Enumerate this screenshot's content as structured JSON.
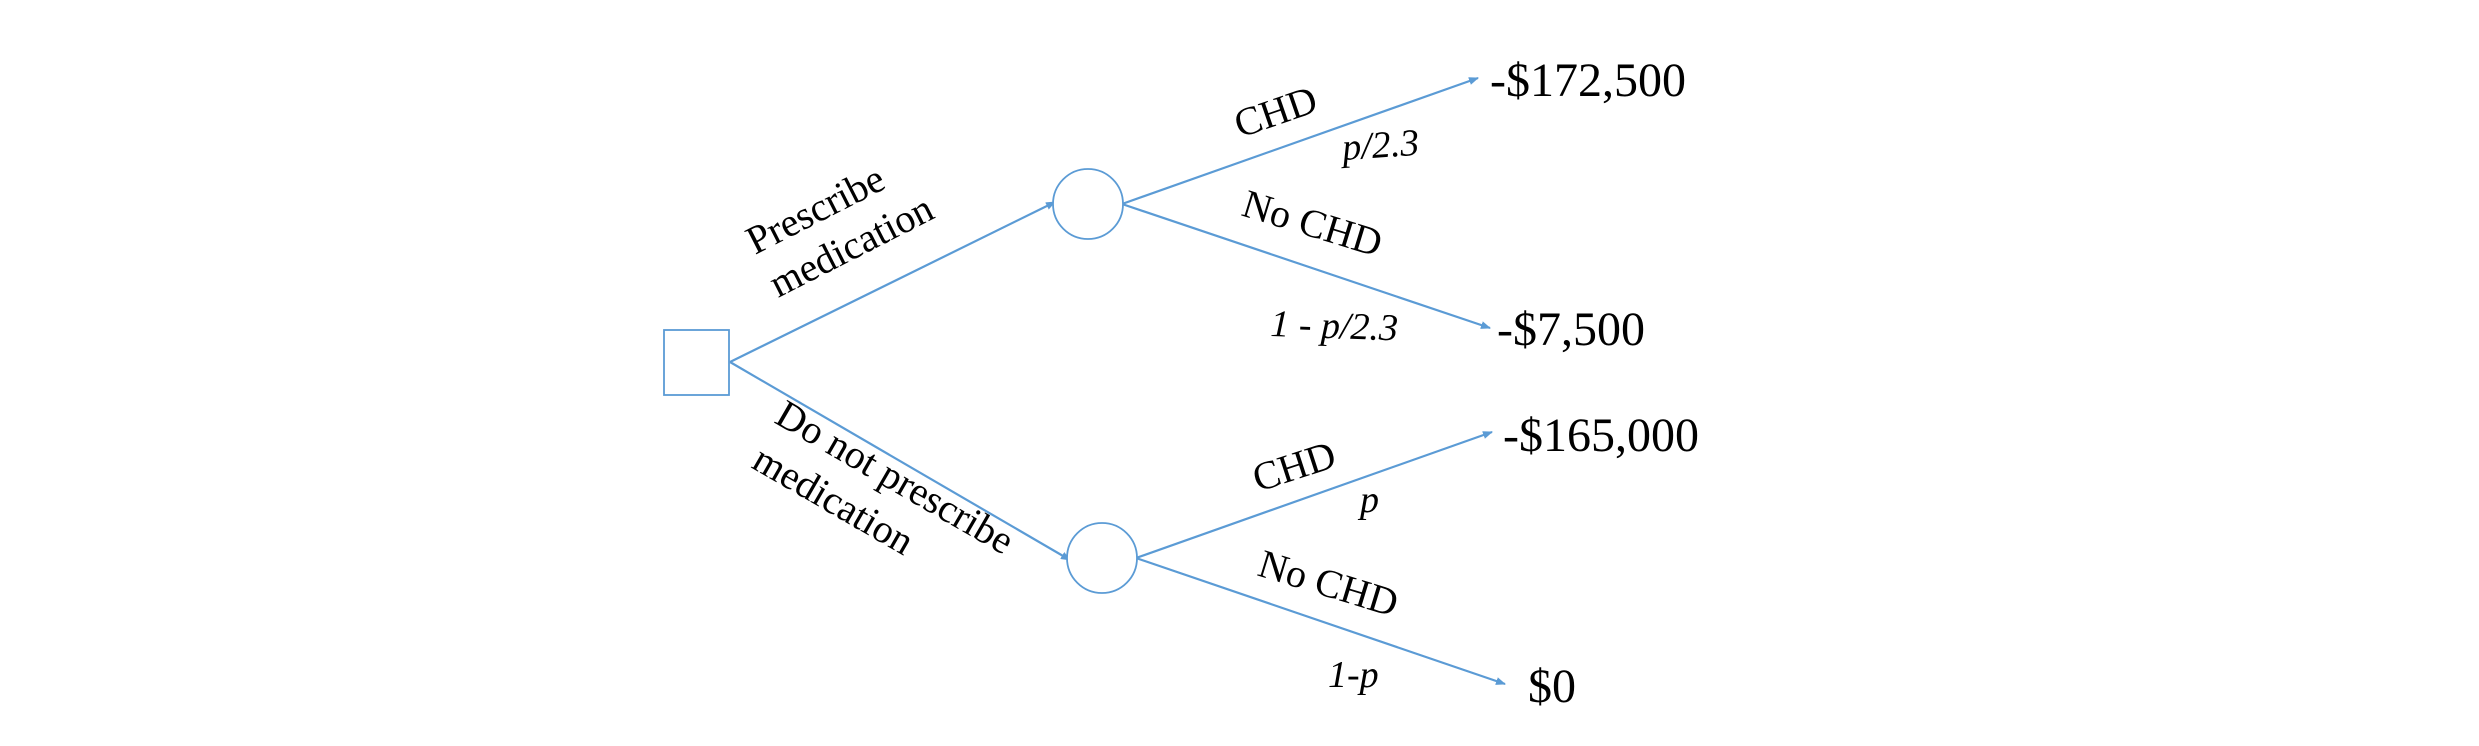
{
  "decision": {
    "prescribe_line1": "Prescribe",
    "prescribe_line2": "medication",
    "no_prescribe_line1": "Do not prescribe",
    "no_prescribe_line2": "medication"
  },
  "prescribe_branch": {
    "chd_label": "CHD",
    "chd_prob": "p/2.3",
    "chd_payoff": "-$172,500",
    "nochd_label": "No CHD",
    "nochd_prob": "1 - p/2.3",
    "nochd_payoff": "-$7,500"
  },
  "no_prescribe_branch": {
    "chd_label": "CHD",
    "chd_prob": "p",
    "chd_payoff": "-$165,000",
    "nochd_label": "No CHD",
    "nochd_prob": "1-p",
    "nochd_payoff": "$0"
  },
  "colors": {
    "line": "#5b9bd5"
  }
}
